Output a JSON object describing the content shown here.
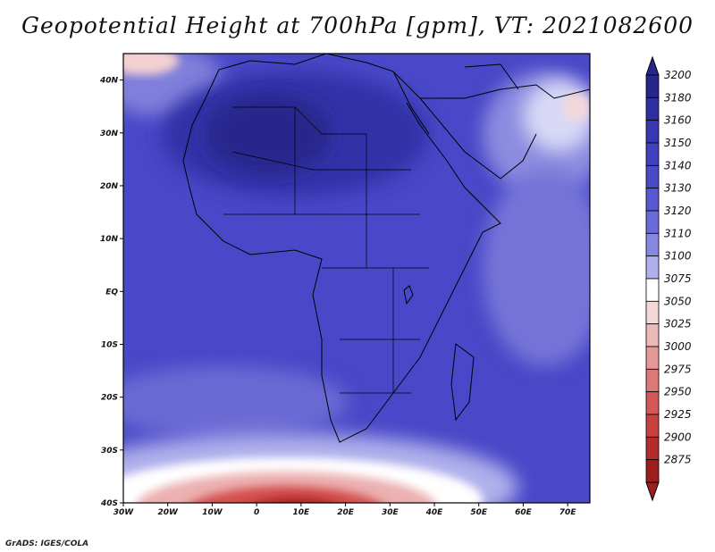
{
  "title": "Geopotential Height at 700hPa [gpm], VT: 2021082600",
  "credit": "GrADS: IGES/COLA",
  "map": {
    "lon_labels": [
      "30W",
      "20W",
      "10W",
      "0",
      "10E",
      "20E",
      "30E",
      "40E",
      "50E",
      "60E",
      "70E"
    ],
    "lat_labels": [
      "40N",
      "30N",
      "20N",
      "10N",
      "EQ",
      "10S",
      "20S",
      "30S",
      "40S"
    ],
    "lon_range": [
      -30,
      75
    ],
    "lat_range": [
      -40,
      45
    ],
    "background_color": "#4848c8",
    "features": [
      {
        "name": "high-core-sahara",
        "color": "#2a2aa0"
      },
      {
        "name": "high-band-north",
        "color": "#3a3ab4"
      },
      {
        "name": "mid-region-central",
        "color": "#4a4ac8"
      },
      {
        "name": "lighter-indian-ocean",
        "color": "#7a7adc"
      },
      {
        "name": "low-southern-trough",
        "color": "#d04040"
      },
      {
        "name": "light-mideast",
        "color": "#b0b0ec"
      },
      {
        "name": "arabian-low",
        "color": "#f4d8d8"
      }
    ]
  },
  "colorbar": {
    "levels": [
      "3200",
      "3180",
      "3160",
      "3150",
      "3140",
      "3130",
      "3120",
      "3110",
      "3100",
      "3075",
      "3050",
      "3025",
      "3000",
      "2975",
      "2950",
      "2925",
      "2900",
      "2875"
    ],
    "colors": [
      "#26268c",
      "#2e2ea0",
      "#3838b4",
      "#4040c0",
      "#4a4ac8",
      "#5858d0",
      "#6a6ad8",
      "#8888e0",
      "#b0b0ec",
      "#ffffff",
      "#f4d8d8",
      "#ecb8b8",
      "#e49898",
      "#dc7878",
      "#d45858",
      "#c84040",
      "#b42c2c",
      "#9c1e1e"
    ]
  }
}
